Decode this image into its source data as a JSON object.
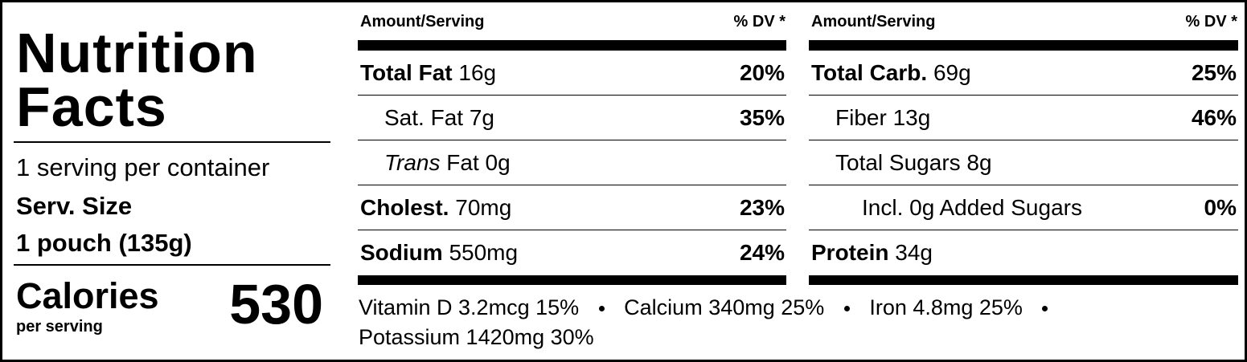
{
  "title_lines": [
    "Nutrition",
    "Facts"
  ],
  "servings": "1 serving per container",
  "serving_size_label": "Serv. Size",
  "serving_size": "1 pouch (135g)",
  "calories_label": "Calories",
  "calories_sub": "per serving",
  "calories": 530,
  "columns": [
    {
      "header_amount": "Amount/Serving",
      "header_dv": "% DV *",
      "rows": [
        {
          "label": "Total Fat",
          "amount": "16g",
          "dv": "20%"
        },
        {
          "label": "Sat. Fat",
          "amount": "7g",
          "dv": "35%"
        },
        {
          "prefix": "Trans",
          "label": "Fat",
          "amount": "0g"
        },
        {
          "label": "Cholest.",
          "amount": "70mg",
          "dv": "23%"
        },
        {
          "label": "Sodium",
          "amount": "550mg",
          "dv": "24%"
        }
      ]
    },
    {
      "header_amount": "Amount/Serving",
      "header_dv": "% DV *",
      "rows": [
        {
          "label": "Total Carb.",
          "amount": "69g",
          "dv": "25%"
        },
        {
          "label": "Fiber",
          "amount": "13g",
          "dv": "46%"
        },
        {
          "label": "Total Sugars",
          "amount": "8g"
        },
        {
          "label": "Incl. 0g Added Sugars",
          "dv": "0%"
        },
        {
          "label": "Protein",
          "amount": "34g"
        }
      ]
    }
  ],
  "micronutrients": [
    "Vitamin D 3.2mcg 15%",
    "Calcium 340mg 25%",
    "Iron 4.8mg 25%",
    "Potassium 1420mg 30%"
  ]
}
